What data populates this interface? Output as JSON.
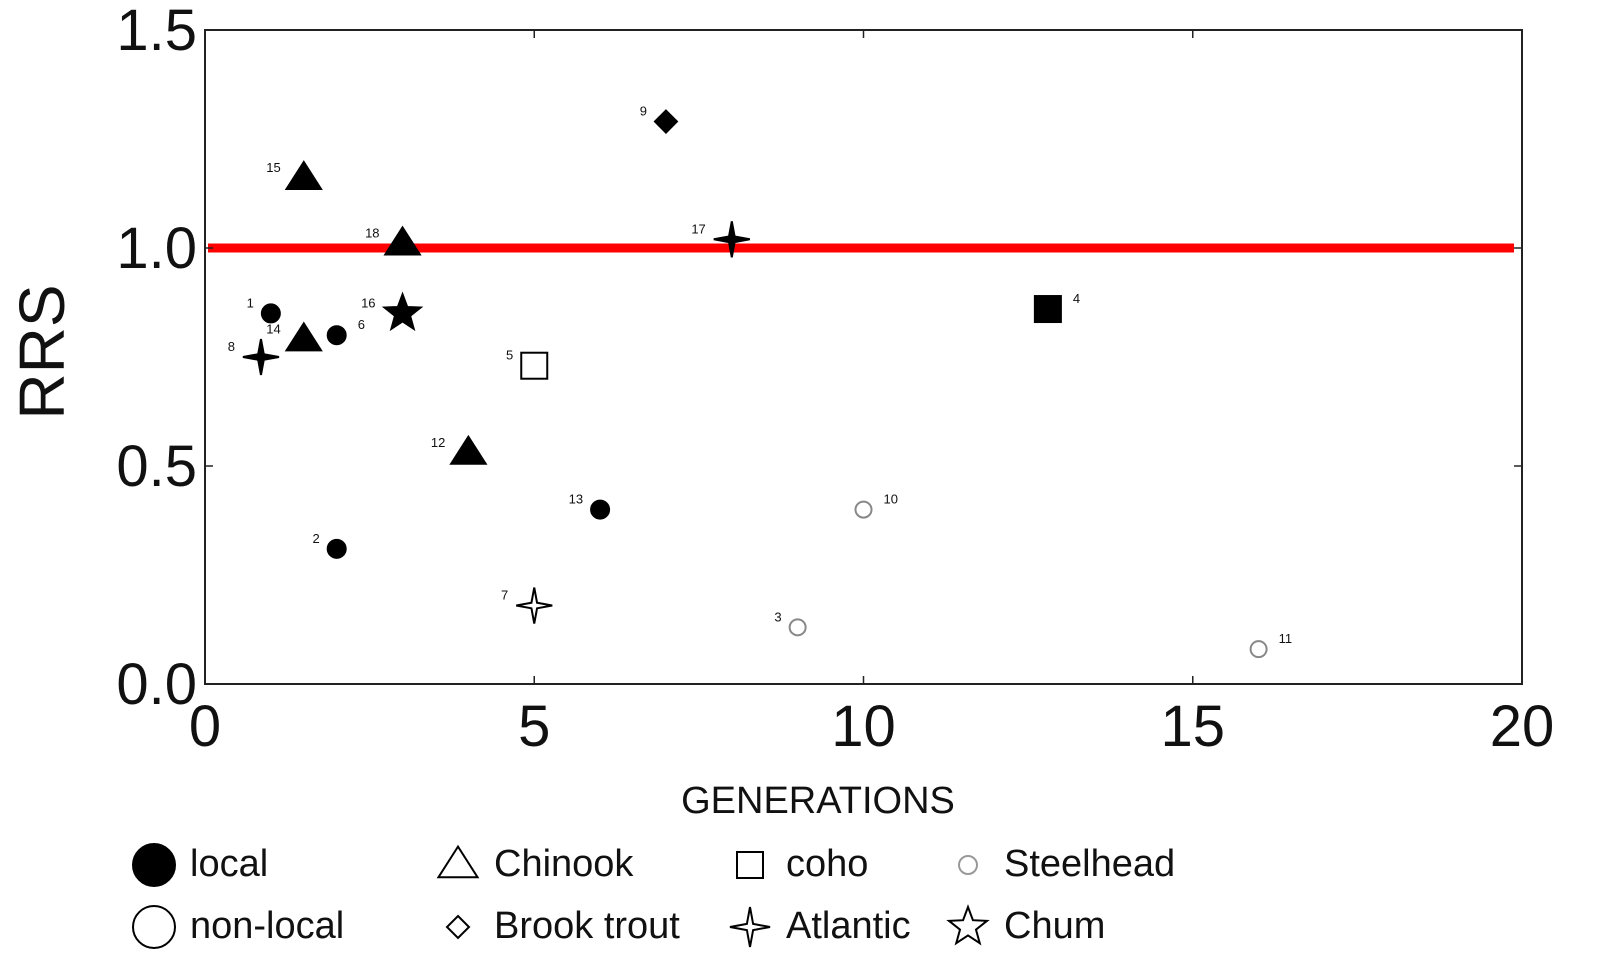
{
  "chart_data": {
    "type": "scatter",
    "title": "",
    "xlabel": "GENERATIONS",
    "ylabel": "RRS",
    "xlim": [
      0,
      20
    ],
    "ylim": [
      0,
      1.5
    ],
    "xticks": [
      "0",
      "5",
      "10",
      "15",
      "20"
    ],
    "yticks": [
      "0.0",
      "0.5",
      "1.0",
      "1.5"
    ],
    "reference_line": {
      "y": 1.0,
      "color": "#ff0000"
    },
    "grid": false,
    "points": [
      {
        "label": "1",
        "x": 1.0,
        "y": 0.85,
        "species": "Steelhead",
        "origin": "local",
        "marker": "circle"
      },
      {
        "label": "2",
        "x": 2.0,
        "y": 0.31,
        "species": "Steelhead",
        "origin": "local",
        "marker": "circle"
      },
      {
        "label": "3",
        "x": 9.0,
        "y": 0.13,
        "species": "Steelhead",
        "origin": "non-local",
        "marker": "circle"
      },
      {
        "label": "4",
        "x": 12.8,
        "y": 0.86,
        "species": "coho",
        "origin": "local",
        "marker": "square"
      },
      {
        "label": "5",
        "x": 5.0,
        "y": 0.73,
        "species": "coho",
        "origin": "non-local",
        "marker": "square"
      },
      {
        "label": "6",
        "x": 2.0,
        "y": 0.8,
        "species": "Steelhead",
        "origin": "local",
        "marker": "circle"
      },
      {
        "label": "7",
        "x": 5.0,
        "y": 0.18,
        "species": "Atlantic",
        "origin": "non-local",
        "marker": "fourstar"
      },
      {
        "label": "8",
        "x": 0.85,
        "y": 0.75,
        "species": "Atlantic",
        "origin": "local",
        "marker": "fourstar"
      },
      {
        "label": "9",
        "x": 7.0,
        "y": 1.29,
        "species": "Brook trout",
        "origin": "local",
        "marker": "diamond"
      },
      {
        "label": "10",
        "x": 10.0,
        "y": 0.4,
        "species": "Steelhead",
        "origin": "non-local",
        "marker": "circle"
      },
      {
        "label": "11",
        "x": 16.0,
        "y": 0.08,
        "species": "Steelhead",
        "origin": "non-local",
        "marker": "circle"
      },
      {
        "label": "12",
        "x": 4.0,
        "y": 0.53,
        "species": "Chinook",
        "origin": "local",
        "marker": "triangle"
      },
      {
        "label": "13",
        "x": 6.0,
        "y": 0.4,
        "species": "Steelhead",
        "origin": "local",
        "marker": "circle"
      },
      {
        "label": "14",
        "x": 1.5,
        "y": 0.79,
        "species": "Chinook",
        "origin": "local",
        "marker": "triangle"
      },
      {
        "label": "15",
        "x": 1.5,
        "y": 1.16,
        "species": "Chinook",
        "origin": "local",
        "marker": "triangle"
      },
      {
        "label": "16",
        "x": 3.0,
        "y": 0.85,
        "species": "Chum",
        "origin": "local",
        "marker": "star"
      },
      {
        "label": "17",
        "x": 8.0,
        "y": 1.02,
        "species": "Atlantic",
        "origin": "local",
        "marker": "fourstar"
      },
      {
        "label": "18",
        "x": 3.0,
        "y": 1.01,
        "species": "Chinook",
        "origin": "local",
        "marker": "triangle"
      }
    ],
    "legend": [
      {
        "label": "local",
        "marker": "circle",
        "filled": true
      },
      {
        "label": "Chinook",
        "marker": "triangle",
        "filled": false
      },
      {
        "label": "coho",
        "marker": "square",
        "filled": false
      },
      {
        "label": "Steelhead",
        "marker": "circle",
        "filled": false,
        "gray": true
      },
      {
        "label": "non-local",
        "marker": "circle",
        "filled": false
      },
      {
        "label": "Brook trout",
        "marker": "diamond",
        "filled": false
      },
      {
        "label": "Atlantic",
        "marker": "fourstar",
        "filled": false
      },
      {
        "label": "Chum",
        "marker": "star",
        "filled": false
      }
    ]
  }
}
